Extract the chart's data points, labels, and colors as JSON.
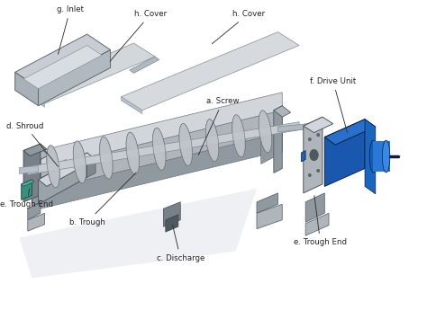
{
  "labels": {
    "a": "a. Screw",
    "b": "b. Trough",
    "c": "c. Discharge",
    "d": "d. Shroud",
    "e1": "e. Trough End",
    "e2": "e. Trough End",
    "f": "f. Drive Unit",
    "g": "g. Inlet",
    "h1": "h. Cover",
    "h2": "h. Cover"
  },
  "colors": {
    "steel_light": "#d2d6db",
    "steel_mid": "#b0b5bc",
    "steel_dark": "#9098a0",
    "steel_darker": "#78808a",
    "screw_body": "#c0c5ca",
    "screw_dark": "#909aa2",
    "drive_blue": "#2060c8",
    "drive_blue_mid": "#3575d8",
    "drive_blue_light": "#4a90e8",
    "teal": "#3a9080",
    "text": "#222222",
    "background": "#ffffff",
    "shadow": "#e0e2e8"
  }
}
